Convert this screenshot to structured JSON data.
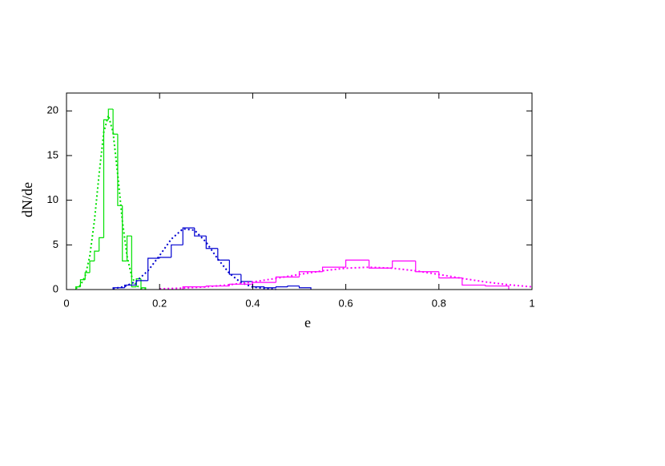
{
  "chart_data": {
    "type": "histogram",
    "x_label": "e",
    "y_label": "dN/de",
    "xlim": [
      0,
      1
    ],
    "ylim": [
      0,
      22
    ],
    "xticks": [
      0,
      0.2,
      0.4,
      0.6,
      0.8,
      1
    ],
    "yticks": [
      0,
      5,
      10,
      15,
      20
    ],
    "series": [
      {
        "style": "step",
        "color": "#00e000",
        "bins": [
          0.02,
          0.03,
          0.04,
          0.05,
          0.06,
          0.07,
          0.08,
          0.09,
          0.1,
          0.11,
          0.12,
          0.13,
          0.14,
          0.15,
          0.16,
          0.17
        ],
        "values": [
          0.3,
          1.1,
          1.9,
          3.2,
          4.3,
          5.8,
          19.0,
          20.2,
          17.4,
          9.4,
          3.2,
          6.0,
          0.3,
          1.2,
          0.2
        ]
      },
      {
        "style": "dotted",
        "color": "#00e000",
        "x": [
          0.02,
          0.03,
          0.04,
          0.05,
          0.06,
          0.07,
          0.08,
          0.09,
          0.1,
          0.11,
          0.12,
          0.13,
          0.14,
          0.15,
          0.16,
          0.17
        ],
        "values": [
          0.12,
          0.47,
          1.48,
          3.74,
          7.7,
          12.9,
          17.6,
          19.5,
          17.6,
          12.9,
          7.7,
          3.74,
          1.48,
          0.47,
          0.12,
          0.03
        ]
      },
      {
        "style": "step",
        "color": "#0000d0",
        "bins": [
          0.1,
          0.125,
          0.15,
          0.175,
          0.2,
          0.225,
          0.25,
          0.275,
          0.3,
          0.325,
          0.35,
          0.375,
          0.4,
          0.425,
          0.45,
          0.475,
          0.5,
          0.525
        ],
        "values": [
          0.2,
          0.5,
          1.0,
          3.5,
          3.6,
          5.0,
          6.9,
          6.0,
          4.6,
          3.3,
          1.7,
          0.9,
          0.3,
          0.2,
          0.3,
          0.4,
          0.2
        ]
      },
      {
        "style": "dotted",
        "color": "#0000d0",
        "x": [
          0.1,
          0.125,
          0.15,
          0.175,
          0.2,
          0.225,
          0.25,
          0.275,
          0.3,
          0.325,
          0.35,
          0.375,
          0.4,
          0.45
        ],
        "values": [
          0.1,
          0.34,
          0.93,
          2.1,
          3.81,
          5.64,
          6.79,
          6.65,
          5.3,
          3.43,
          1.81,
          0.77,
          0.27,
          0.02
        ]
      },
      {
        "style": "step",
        "color": "#ff00ff",
        "bins": [
          0.25,
          0.3,
          0.35,
          0.4,
          0.45,
          0.5,
          0.55,
          0.6,
          0.65,
          0.7,
          0.75,
          0.8,
          0.85,
          0.9,
          0.95
        ],
        "values": [
          0.3,
          0.4,
          0.6,
          0.8,
          1.4,
          2.0,
          2.5,
          3.3,
          2.4,
          3.2,
          2.0,
          1.3,
          0.5,
          0.4
        ]
      },
      {
        "style": "dotted",
        "color": "#ff00ff",
        "x": [
          0.2,
          0.25,
          0.3,
          0.35,
          0.4,
          0.45,
          0.5,
          0.55,
          0.6,
          0.65,
          0.7,
          0.75,
          0.8,
          0.85,
          0.9,
          0.95,
          1.0
        ],
        "values": [
          0.08,
          0.16,
          0.3,
          0.53,
          0.85,
          1.25,
          1.69,
          2.1,
          2.39,
          2.5,
          2.39,
          2.1,
          1.69,
          1.25,
          0.85,
          0.53,
          0.3
        ]
      }
    ]
  }
}
